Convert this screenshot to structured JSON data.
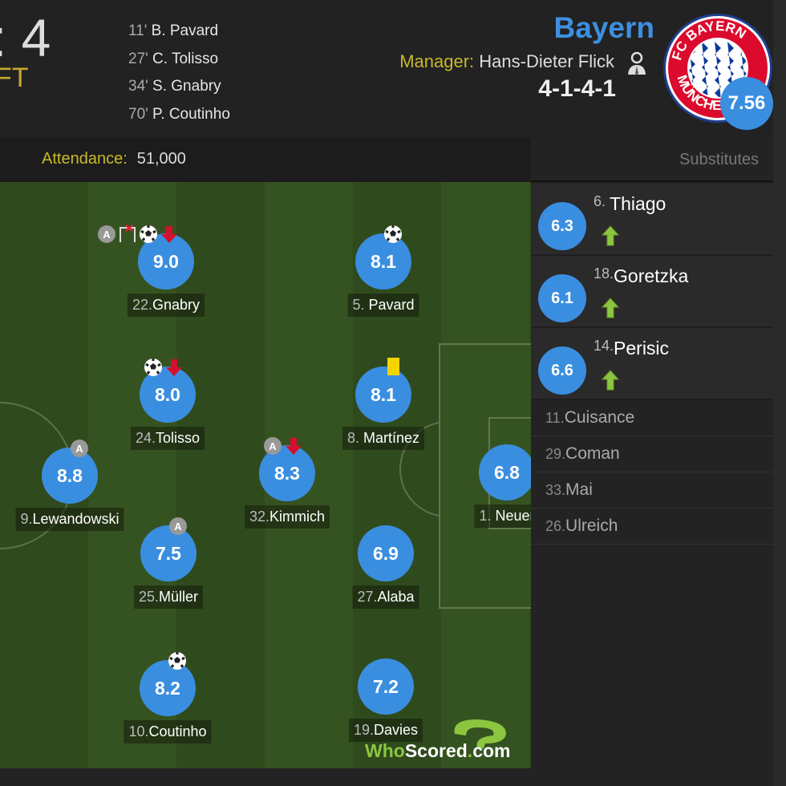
{
  "match": {
    "score_fragment": ": 4",
    "status": "FT",
    "attendance_label": "Attendance:",
    "attendance": "51,000"
  },
  "goals": [
    {
      "minute": "11'",
      "player": "B. Pavard"
    },
    {
      "minute": "27'",
      "player": "C. Tolisso"
    },
    {
      "minute": "34'",
      "player": "S. Gnabry"
    },
    {
      "minute": "70'",
      "player": "P. Coutinho"
    }
  ],
  "team": {
    "name": "Bayern",
    "manager_label": "Manager:",
    "manager": "Hans-Dieter Flick",
    "formation": "4-1-4-1",
    "rating": "7.56",
    "logo_text": "FC BAYERN MÜNCHEN",
    "color": "#3d8fe0"
  },
  "substitutes_label": "Substitutes",
  "players": [
    {
      "num": "22.",
      "name": "Gnabry",
      "rating": "9.0",
      "events": [
        "assist-icon",
        "woodwork-icon",
        "goal-icon",
        "sub-off-icon"
      ]
    },
    {
      "num": "5. ",
      "name": "Pavard",
      "rating": "8.1",
      "events": [
        "goal-icon"
      ]
    },
    {
      "num": "24.",
      "name": "Tolisso",
      "rating": "8.0",
      "events": [
        "goal-icon",
        "sub-off-icon"
      ]
    },
    {
      "num": "8. ",
      "name": "Martínez",
      "rating": "8.1",
      "events": [
        "yellow-card-icon"
      ]
    },
    {
      "num": "9.",
      "name": "Lewandowski",
      "rating": "8.8",
      "events": [
        "assist-icon"
      ]
    },
    {
      "num": "32.",
      "name": "Kimmich",
      "rating": "8.3",
      "events": [
        "assist-icon",
        "sub-off-icon"
      ]
    },
    {
      "num": "1. ",
      "name": "Neuer",
      "rating": "6.8",
      "events": []
    },
    {
      "num": "25.",
      "name": "Müller",
      "rating": "7.5",
      "events": [
        "assist-icon"
      ]
    },
    {
      "num": "27.",
      "name": "Alaba",
      "rating": "6.9",
      "events": []
    },
    {
      "num": "10.",
      "name": "Coutinho",
      "rating": "8.2",
      "events": [
        "goal-icon"
      ]
    },
    {
      "num": "19.",
      "name": "Davies",
      "rating": "7.2",
      "events": []
    }
  ],
  "subs_used": [
    {
      "num": "6. ",
      "name": "Thiago",
      "rating": "6.3"
    },
    {
      "num": "18.",
      "name": "Goretzka",
      "rating": "6.1"
    },
    {
      "num": "14.",
      "name": "Perisic",
      "rating": "6.6"
    }
  ],
  "bench": [
    {
      "num": "11.",
      "name": "Cuisance"
    },
    {
      "num": "29.",
      "name": "Coman"
    },
    {
      "num": "33.",
      "name": "Mai"
    },
    {
      "num": "26.",
      "name": "Ulreich"
    }
  ],
  "watermark": "WhoScored.com"
}
